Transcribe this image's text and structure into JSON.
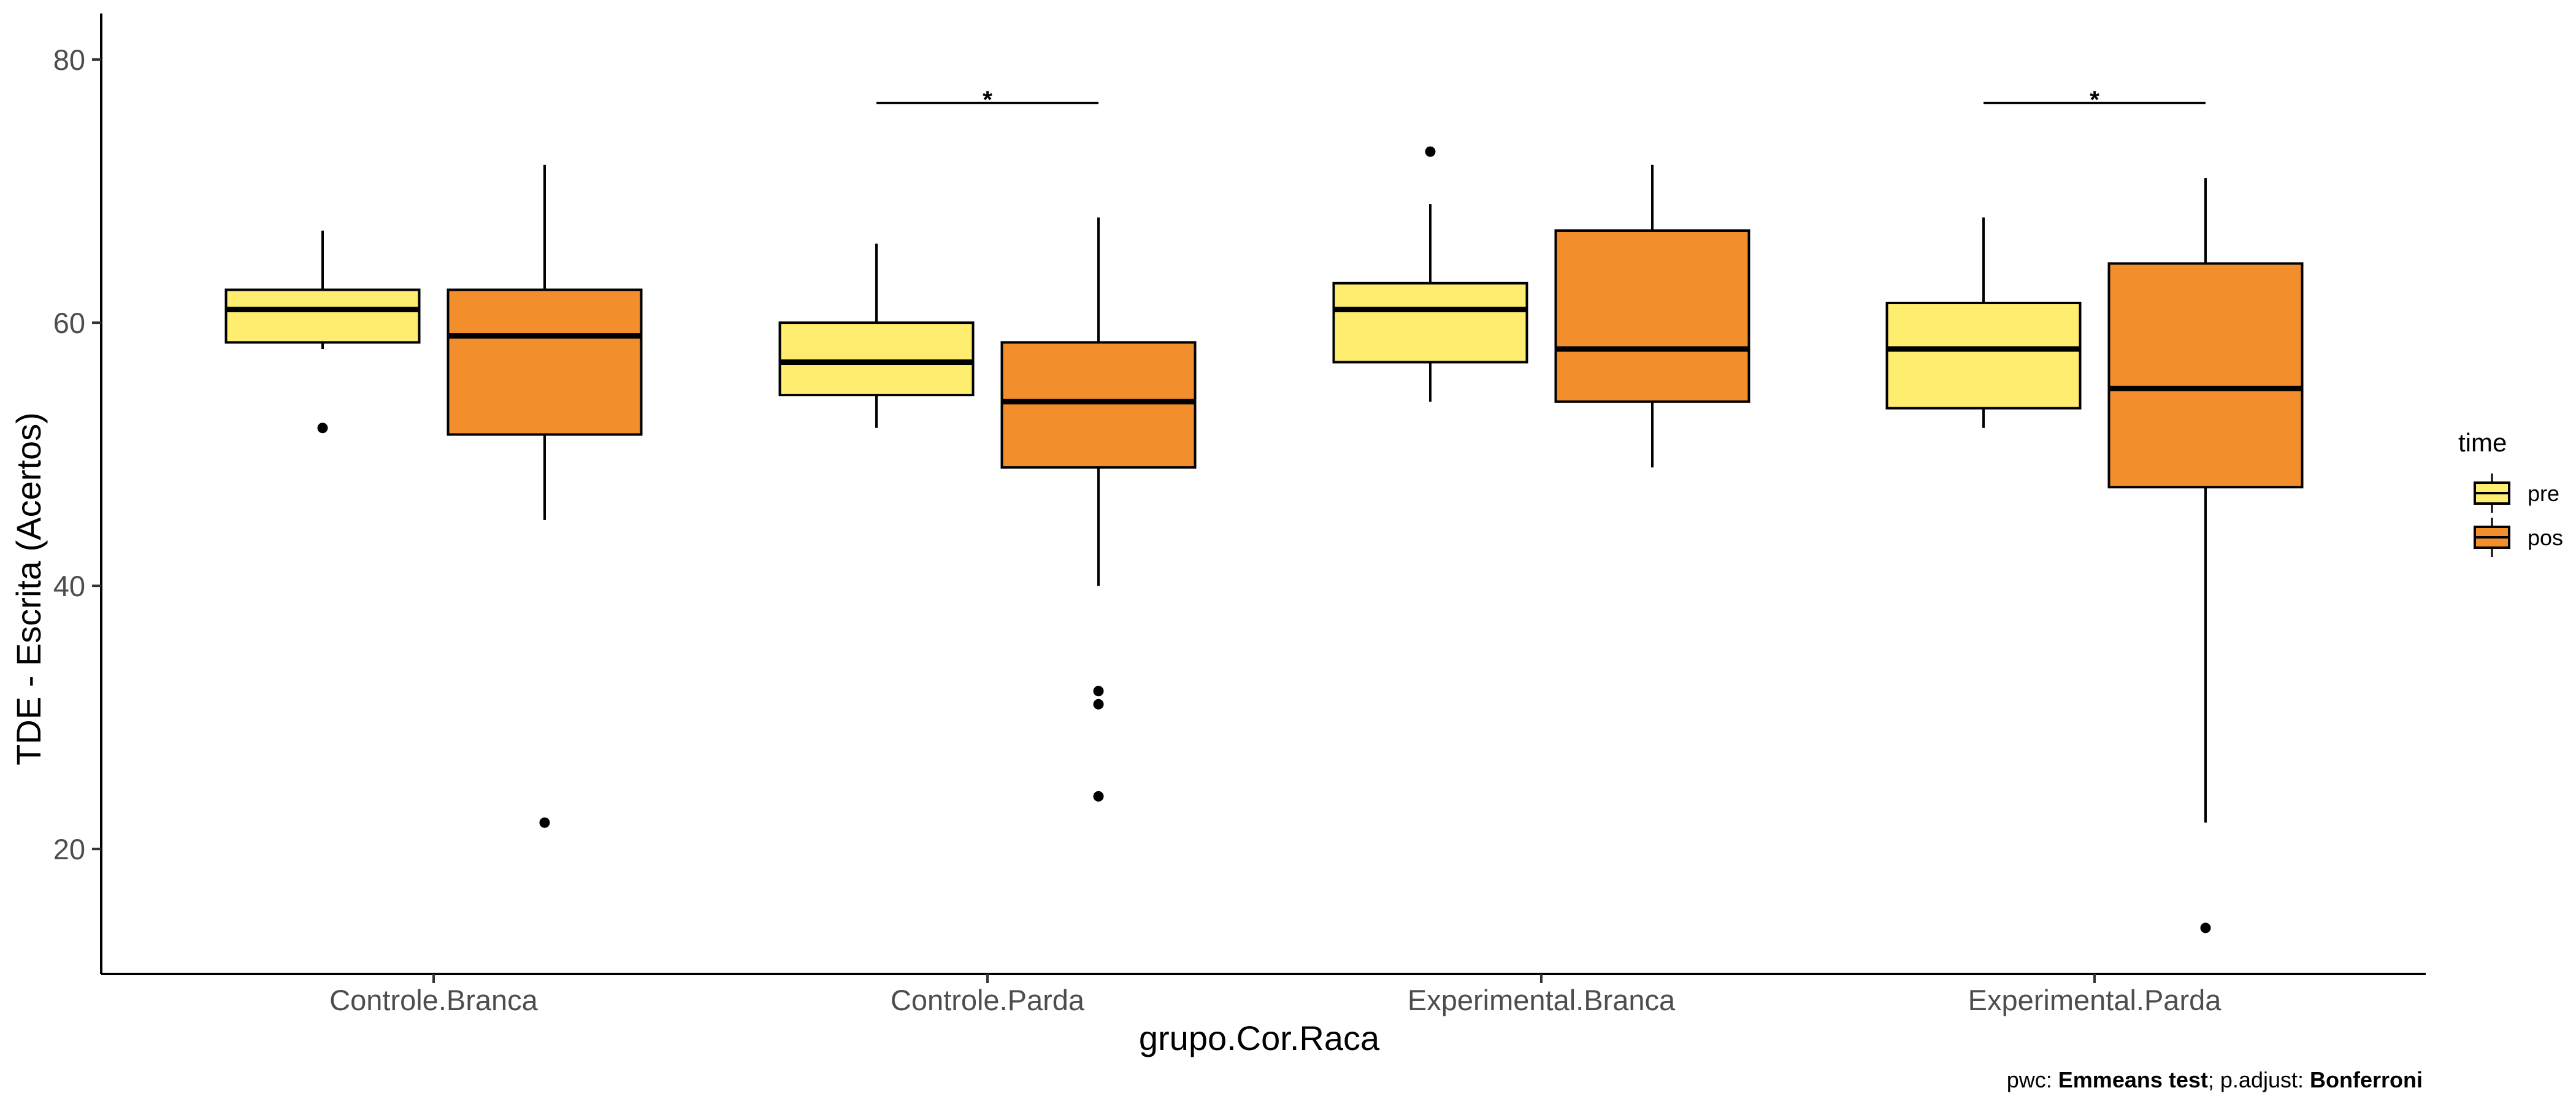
{
  "chart_data": {
    "type": "boxplot",
    "xlabel": "grupo.Cor.Raca",
    "ylabel": "TDE - Escrita (Acertos)",
    "ylim": [
      10.5,
      83.5
    ],
    "yticks": [
      20,
      40,
      60,
      80
    ],
    "categories": [
      "Controle.Branca",
      "Controle.Parda",
      "Experimental.Branca",
      "Experimental.Parda"
    ],
    "legend": {
      "title": "time",
      "position": "right",
      "entries": [
        {
          "name": "pre",
          "color": "#FFED6F"
        },
        {
          "name": "pos",
          "color": "#F28E2B"
        }
      ]
    },
    "series": [
      {
        "name": "pre",
        "color": "#FFED6F",
        "boxes": [
          {
            "category": "Controle.Branca",
            "whisker_low": 58,
            "q1": 58.5,
            "median": 61,
            "q3": 62.5,
            "whisker_high": 67,
            "outliers": [
              52
            ]
          },
          {
            "category": "Controle.Parda",
            "whisker_low": 52,
            "q1": 54.5,
            "median": 57,
            "q3": 60,
            "whisker_high": 66,
            "outliers": []
          },
          {
            "category": "Experimental.Branca",
            "whisker_low": 54,
            "q1": 57,
            "median": 61,
            "q3": 63,
            "whisker_high": 69,
            "outliers": [
              73
            ]
          },
          {
            "category": "Experimental.Parda",
            "whisker_low": 52,
            "q1": 53.5,
            "median": 58,
            "q3": 61.5,
            "whisker_high": 68,
            "outliers": []
          }
        ]
      },
      {
        "name": "pos",
        "color": "#F28E2B",
        "boxes": [
          {
            "category": "Controle.Branca",
            "whisker_low": 45,
            "q1": 51.5,
            "median": 59,
            "q3": 62.5,
            "whisker_high": 72,
            "outliers": [
              22
            ]
          },
          {
            "category": "Controle.Parda",
            "whisker_low": 40,
            "q1": 49,
            "median": 54,
            "q3": 58.5,
            "whisker_high": 68,
            "outliers": [
              32,
              31,
              24
            ]
          },
          {
            "category": "Experimental.Branca",
            "whisker_low": 49,
            "q1": 54,
            "median": 58,
            "q3": 67,
            "whisker_high": 72,
            "outliers": []
          },
          {
            "category": "Experimental.Parda",
            "whisker_low": 22,
            "q1": 47.5,
            "median": 55,
            "q3": 64.5,
            "whisker_high": 71,
            "outliers": [
              14
            ]
          }
        ]
      }
    ],
    "annotations": [
      {
        "category": "Controle.Parda",
        "y": 76.7,
        "label": "*"
      },
      {
        "category": "Experimental.Parda",
        "y": 76.7,
        "label": "*"
      }
    ],
    "grid": false
  },
  "caption": {
    "prefix": "pwc: ",
    "test": "Emmeans test",
    "mid": "; p.adjust: ",
    "method": "Bonferroni"
  }
}
